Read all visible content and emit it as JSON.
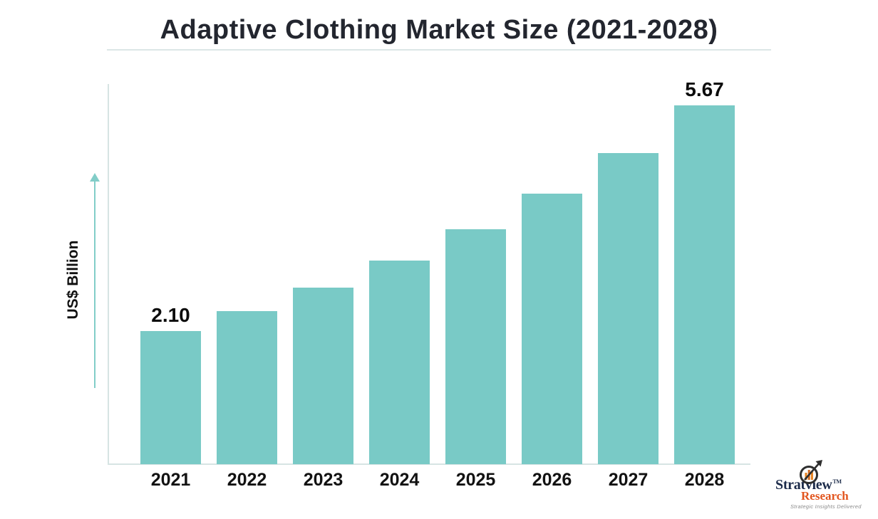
{
  "title": "Adaptive Clothing Market Size (2021-2028)",
  "y_axis_label": "US$ Billion",
  "chart_data": {
    "type": "bar",
    "title": "Adaptive Clothing Market Size (2021-2028)",
    "xlabel": "",
    "ylabel": "US$ Billion",
    "categories": [
      "2021",
      "2022",
      "2023",
      "2024",
      "2025",
      "2026",
      "2027",
      "2028"
    ],
    "values": [
      2.1,
      2.42,
      2.79,
      3.22,
      3.71,
      4.27,
      4.92,
      5.67
    ],
    "data_labels": [
      "2.10",
      "",
      "",
      "",
      "",
      "",
      "",
      "5.67"
    ],
    "ylim": [
      0,
      6.0
    ],
    "grid": false,
    "legend": false,
    "bar_color": "#79cac6"
  },
  "branding": {
    "name_primary": "Stratview",
    "trademark": "TM",
    "name_secondary": "Research",
    "tagline": "Strategic Insights Delivered",
    "logo_icon": "magnifier-bar-chart-arrow-icon"
  },
  "colors": {
    "bar": "#79cac6",
    "title_text": "#23262f",
    "underline": "#dbe6e6",
    "axis_line": "#d6e4e3",
    "arrow": "#82cdc8",
    "label_text": "#0c0c0c",
    "brand_primary": "#1c2b4a",
    "brand_secondary": "#e2551e",
    "brand_tagline": "#8b8b8b"
  }
}
